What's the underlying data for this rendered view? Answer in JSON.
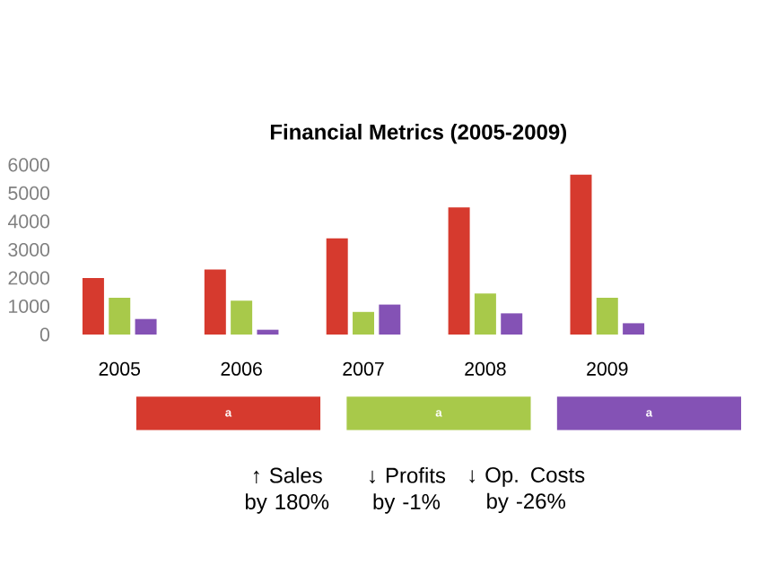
{
  "chart_data": {
    "type": "bar",
    "title": "Financial Metrics (2005-2009)",
    "categories": [
      "2005",
      "2006",
      "2007",
      "2008",
      "2009"
    ],
    "series": [
      {
        "name": "a",
        "color": "#d63a2e",
        "values": [
          2000,
          2300,
          3400,
          4500,
          5650
        ]
      },
      {
        "name": "a",
        "color": "#a8c94a",
        "values": [
          1300,
          1200,
          800,
          1450,
          1300
        ]
      },
      {
        "name": "a",
        "color": "#8452b5",
        "values": [
          550,
          170,
          1060,
          750,
          400
        ]
      }
    ],
    "ylim": [
      0,
      6000
    ],
    "yticks": [
      0,
      1000,
      2000,
      3000,
      4000,
      5000,
      6000
    ],
    "grid": false,
    "legend": "bottom",
    "annotations": [
      "↑ Sales by 180%",
      "↓ Profits by -1%",
      "↓ Op. Costs by -26%"
    ]
  }
}
